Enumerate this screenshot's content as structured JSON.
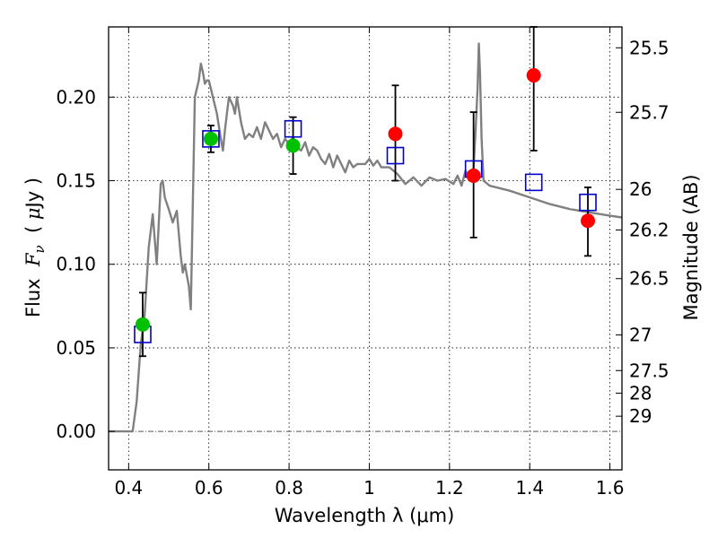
{
  "chart_data": {
    "type": "scatter",
    "xlabel": "Wavelength  λ (μm)",
    "ylabel": "Flux  F_ν  ( μJy )",
    "ylabel_parts": {
      "prefix": "Flux  ",
      "var": "F",
      "sub": "ν",
      "mid": "  ( ",
      "mu": "μ",
      "suffix": "Jy )"
    },
    "ylabel_right": "Magnitude (AB)",
    "xlim": [
      0.35,
      1.63
    ],
    "ylim": [
      -0.023,
      0.242
    ],
    "grid": true,
    "x_ticks": [
      0.4,
      0.6,
      0.8,
      1.0,
      1.2,
      1.4,
      1.6
    ],
    "x_tick_labels": [
      "0.4",
      "0.6",
      "0.8",
      "1",
      "1.2",
      "1.4",
      "1.6"
    ],
    "y_ticks": [
      0.0,
      0.05,
      0.1,
      0.15,
      0.2
    ],
    "y_tick_labels": [
      "0.00",
      "0.05",
      "0.10",
      "0.15",
      "0.20"
    ],
    "right_axis_ticks": [
      {
        "label": "25.5",
        "flux": 0.2295
      },
      {
        "label": "25.7",
        "flux": 0.1909
      },
      {
        "label": "26",
        "flux": 0.1448
      },
      {
        "label": "26.2",
        "flux": 0.1205
      },
      {
        "label": "26.5",
        "flux": 0.0914
      },
      {
        "label": "27",
        "flux": 0.0577
      },
      {
        "label": "27.5",
        "flux": 0.0364
      },
      {
        "label": "28",
        "flux": 0.0229
      },
      {
        "label": "29",
        "flux": 0.0091
      }
    ],
    "series": [
      {
        "kind": "line",
        "color": "#808080",
        "x": [
          0.35,
          0.39,
          0.41,
          0.42,
          0.43,
          0.44,
          0.45,
          0.46,
          0.47,
          0.48,
          0.485,
          0.49,
          0.5,
          0.51,
          0.52,
          0.53,
          0.535,
          0.54,
          0.55,
          0.555,
          0.565,
          0.575,
          0.58,
          0.585,
          0.59,
          0.595,
          0.6,
          0.605,
          0.61,
          0.62,
          0.63,
          0.635,
          0.64,
          0.645,
          0.65,
          0.66,
          0.665,
          0.67,
          0.68,
          0.69,
          0.7,
          0.71,
          0.72,
          0.73,
          0.74,
          0.75,
          0.76,
          0.77,
          0.78,
          0.79,
          0.8,
          0.81,
          0.82,
          0.83,
          0.84,
          0.85,
          0.86,
          0.87,
          0.88,
          0.89,
          0.9,
          0.91,
          0.92,
          0.93,
          0.94,
          0.95,
          0.96,
          0.97,
          0.98,
          0.99,
          1.0,
          1.01,
          1.02,
          1.03,
          1.05,
          1.07,
          1.09,
          1.11,
          1.13,
          1.15,
          1.17,
          1.19,
          1.21,
          1.22,
          1.23,
          1.24,
          1.25,
          1.255,
          1.26,
          1.265,
          1.27,
          1.273,
          1.276,
          1.28,
          1.285,
          1.3,
          1.35,
          1.4,
          1.45,
          1.5,
          1.55,
          1.6,
          1.63
        ],
        "y": [
          0.0,
          0.0,
          0.0,
          0.018,
          0.052,
          0.07,
          0.11,
          0.13,
          0.1,
          0.148,
          0.15,
          0.14,
          0.133,
          0.125,
          0.132,
          0.105,
          0.095,
          0.1,
          0.087,
          0.073,
          0.2,
          0.21,
          0.22,
          0.215,
          0.208,
          0.21,
          0.21,
          0.205,
          0.2,
          0.19,
          0.175,
          0.168,
          0.18,
          0.19,
          0.2,
          0.195,
          0.19,
          0.2,
          0.185,
          0.175,
          0.178,
          0.176,
          0.182,
          0.175,
          0.185,
          0.18,
          0.175,
          0.178,
          0.17,
          0.175,
          0.172,
          0.176,
          0.17,
          0.168,
          0.173,
          0.165,
          0.17,
          0.168,
          0.163,
          0.16,
          0.166,
          0.158,
          0.165,
          0.16,
          0.155,
          0.162,
          0.158,
          0.16,
          0.16,
          0.16,
          0.163,
          0.159,
          0.162,
          0.158,
          0.158,
          0.154,
          0.148,
          0.152,
          0.147,
          0.152,
          0.15,
          0.151,
          0.148,
          0.153,
          0.147,
          0.156,
          0.15,
          0.151,
          0.158,
          0.18,
          0.205,
          0.232,
          0.215,
          0.175,
          0.15,
          0.147,
          0.144,
          0.14,
          0.136,
          0.133,
          0.131,
          0.129,
          0.128
        ]
      },
      {
        "kind": "open_square",
        "color": "#0000cc",
        "x": [
          0.435,
          0.605,
          0.81,
          1.065,
          1.26,
          1.41,
          1.545
        ],
        "y": [
          0.058,
          0.175,
          0.181,
          0.165,
          0.157,
          0.149,
          0.137
        ]
      },
      {
        "kind": "filled_circle",
        "color": "#00c000",
        "x": [
          0.435,
          0.605,
          0.81
        ],
        "y": [
          0.064,
          0.175,
          0.171
        ],
        "yerr_low": [
          0.045,
          0.167,
          0.154
        ],
        "yerr_high": [
          0.083,
          0.183,
          0.188
        ]
      },
      {
        "kind": "filled_circle",
        "color": "#ff0000",
        "x": [
          1.065,
          1.26,
          1.41,
          1.545
        ],
        "y": [
          0.178,
          0.153,
          0.213,
          0.126
        ],
        "yerr_low": [
          0.15,
          0.116,
          0.168,
          0.105
        ],
        "yerr_high": [
          0.207,
          0.191,
          0.242,
          0.146
        ]
      }
    ],
    "colors": {
      "axis": "#000000",
      "grid": "#000000",
      "zero_line": "#555555"
    }
  }
}
